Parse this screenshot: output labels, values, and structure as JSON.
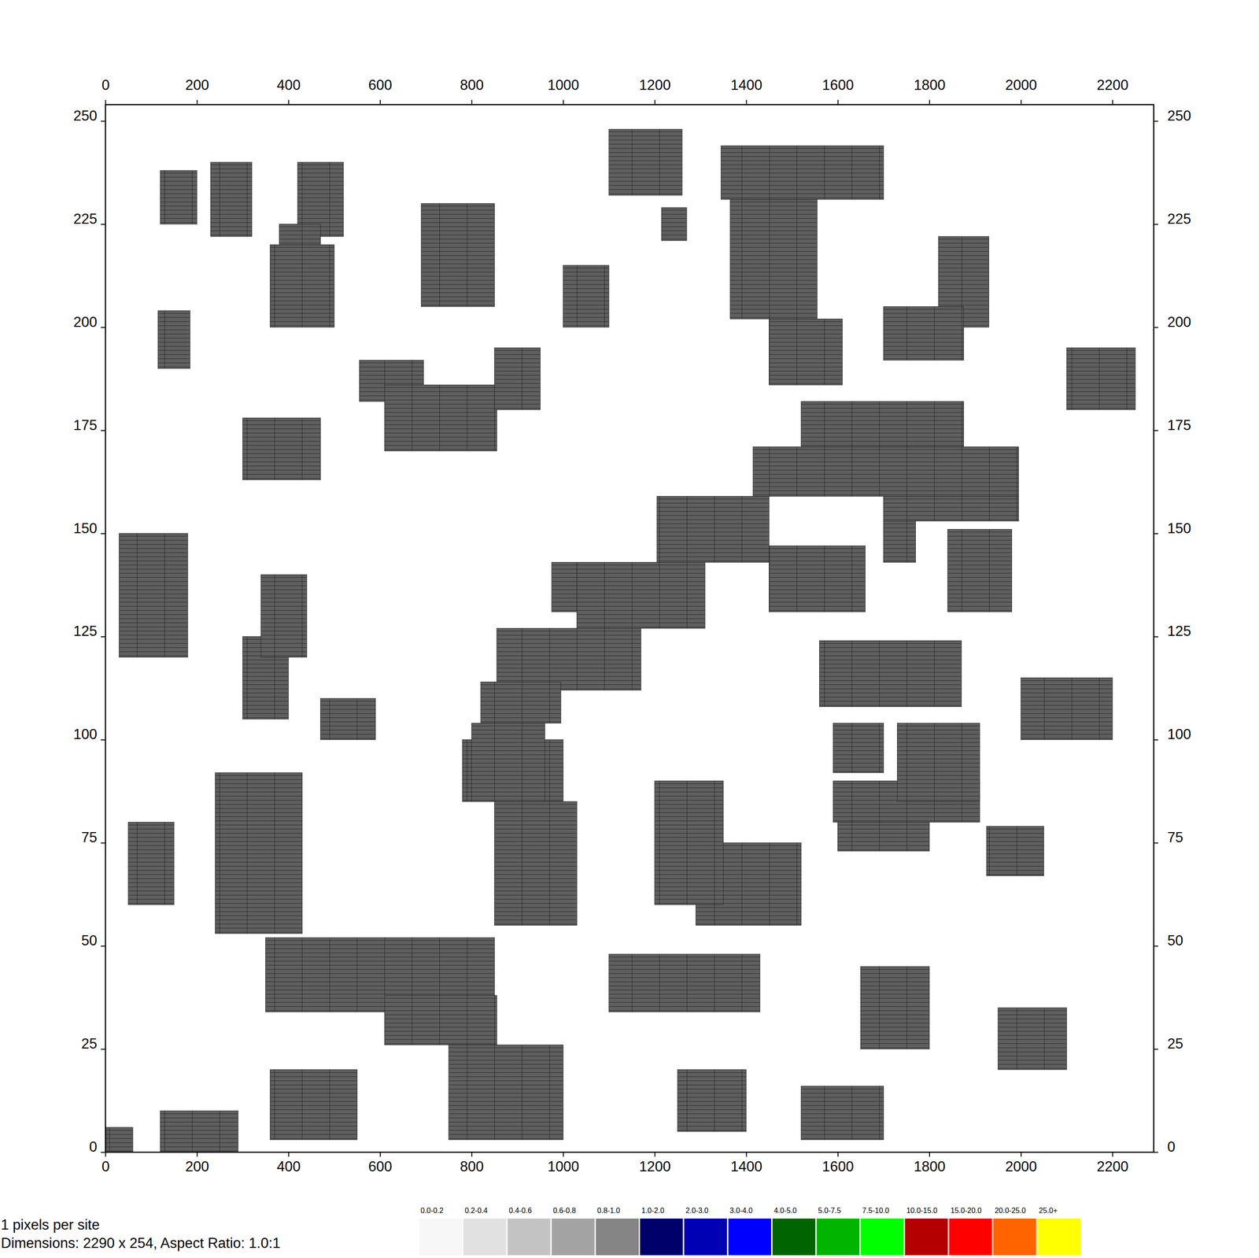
{
  "chart_data": {
    "type": "site_map",
    "xlim": [
      0,
      2290
    ],
    "ylim": [
      0,
      254
    ],
    "xticks": [
      0,
      200,
      400,
      600,
      800,
      1000,
      1200,
      1400,
      1600,
      1800,
      2000,
      2200
    ],
    "yticks": [
      0,
      25,
      50,
      75,
      100,
      125,
      150,
      175,
      200,
      225,
      250
    ],
    "color": "#5f5f5f",
    "regions": [
      {
        "x": [
          120,
          200
        ],
        "y": [
          225,
          238
        ]
      },
      {
        "x": [
          230,
          320
        ],
        "y": [
          222,
          240
        ]
      },
      {
        "x": [
          420,
          520
        ],
        "y": [
          222,
          240
        ]
      },
      {
        "x": [
          380,
          470
        ],
        "y": [
          205,
          225
        ]
      },
      {
        "x": [
          360,
          500
        ],
        "y": [
          200,
          220
        ]
      },
      {
        "x": [
          690,
          850
        ],
        "y": [
          205,
          230
        ]
      },
      {
        "x": [
          1100,
          1260
        ],
        "y": [
          232,
          248
        ]
      },
      {
        "x": [
          1215,
          1270
        ],
        "y": [
          221,
          229
        ]
      },
      {
        "x": [
          300,
          470
        ],
        "y": [
          163,
          178
        ]
      },
      {
        "x": [
          555,
          695
        ],
        "y": [
          182,
          192
        ]
      },
      {
        "x": [
          610,
          855
        ],
        "y": [
          170,
          186
        ]
      },
      {
        "x": [
          115,
          185
        ],
        "y": [
          190,
          204
        ]
      },
      {
        "x": [
          30,
          180
        ],
        "y": [
          120,
          150
        ]
      },
      {
        "x": [
          300,
          400
        ],
        "y": [
          105,
          125
        ]
      },
      {
        "x": [
          340,
          440
        ],
        "y": [
          120,
          140
        ]
      },
      {
        "x": [
          470,
          590
        ],
        "y": [
          100,
          110
        ]
      },
      {
        "x": [
          240,
          430
        ],
        "y": [
          53,
          92
        ]
      },
      {
        "x": [
          780,
          1000
        ],
        "y": [
          85,
          100
        ]
      },
      {
        "x": [
          850,
          1030
        ],
        "y": [
          55,
          85
        ]
      },
      {
        "x": [
          350,
          850
        ],
        "y": [
          34,
          52
        ]
      },
      {
        "x": [
          610,
          855
        ],
        "y": [
          26,
          38
        ]
      },
      {
        "x": [
          750,
          1000
        ],
        "y": [
          3,
          26
        ]
      },
      {
        "x": [
          120,
          290
        ],
        "y": [
          0,
          10
        ]
      },
      {
        "x": [
          360,
          550
        ],
        "y": [
          3,
          20
        ]
      },
      {
        "x": [
          1100,
          1430
        ],
        "y": [
          34,
          48
        ]
      },
      {
        "x": [
          1290,
          1520
        ],
        "y": [
          55,
          75
        ]
      },
      {
        "x": [
          1590,
          1910
        ],
        "y": [
          80,
          90
        ]
      },
      {
        "x": [
          1600,
          1800
        ],
        "y": [
          73,
          80
        ]
      },
      {
        "x": [
          1925,
          2050
        ],
        "y": [
          67,
          79
        ]
      },
      {
        "x": [
          1560,
          1870
        ],
        "y": [
          108,
          124
        ]
      },
      {
        "x": [
          1590,
          1700
        ],
        "y": [
          92,
          104
        ]
      },
      {
        "x": [
          1730,
          1910
        ],
        "y": [
          85,
          104
        ]
      },
      {
        "x": [
          1840,
          1980
        ],
        "y": [
          131,
          151
        ]
      },
      {
        "x": [
          1450,
          1660
        ],
        "y": [
          131,
          147
        ]
      },
      {
        "x": [
          1700,
          1770
        ],
        "y": [
          143,
          155
        ]
      },
      {
        "x": [
          1820,
          1930
        ],
        "y": [
          200,
          222
        ]
      },
      {
        "x": [
          1700,
          1875
        ],
        "y": [
          192,
          205
        ]
      },
      {
        "x": [
          1345,
          1700
        ],
        "y": [
          231,
          244
        ]
      },
      {
        "x": [
          1365,
          1555
        ],
        "y": [
          202,
          231
        ]
      },
      {
        "x": [
          1450,
          1610
        ],
        "y": [
          186,
          202
        ]
      },
      {
        "x": [
          1520,
          1875
        ],
        "y": [
          171,
          182
        ]
      },
      {
        "x": [
          1415,
          1995
        ],
        "y": [
          159,
          171
        ]
      },
      {
        "x": [
          1700,
          1995
        ],
        "y": [
          153,
          159
        ]
      },
      {
        "x": [
          1205,
          1450
        ],
        "y": [
          143,
          159
        ]
      },
      {
        "x": [
          1030,
          1310
        ],
        "y": [
          127,
          143
        ]
      },
      {
        "x": [
          855,
          1170
        ],
        "y": [
          112,
          127
        ]
      },
      {
        "x": [
          820,
          995
        ],
        "y": [
          104,
          114
        ]
      },
      {
        "x": [
          800,
          960
        ],
        "y": [
          85,
          104
        ]
      },
      {
        "x": [
          975,
          1030
        ],
        "y": [
          131,
          143
        ]
      },
      {
        "x": [
          1520,
          1700
        ],
        "y": [
          3,
          16
        ]
      },
      {
        "x": [
          1200,
          1350
        ],
        "y": [
          60,
          90
        ]
      },
      {
        "x": [
          1650,
          1800
        ],
        "y": [
          25,
          45
        ]
      },
      {
        "x": [
          1950,
          2100
        ],
        "y": [
          20,
          35
        ]
      },
      {
        "x": [
          2000,
          2200
        ],
        "y": [
          100,
          115
        ]
      },
      {
        "x": [
          2100,
          2250
        ],
        "y": [
          180,
          195
        ]
      },
      {
        "x": [
          0,
          60
        ],
        "y": [
          0,
          6
        ]
      },
      {
        "x": [
          1250,
          1400
        ],
        "y": [
          5,
          20
        ]
      },
      {
        "x": [
          1000,
          1100
        ],
        "y": [
          200,
          215
        ]
      },
      {
        "x": [
          850,
          950
        ],
        "y": [
          180,
          195
        ]
      },
      {
        "x": [
          50,
          150
        ],
        "y": [
          60,
          80
        ]
      }
    ],
    "colorbar": {
      "labels": [
        "0.0-0.2",
        "0.2-0.4",
        "0.4-0.6",
        "0.6-0.8",
        "0.8-1.0",
        "1.0-2.0",
        "2.0-3.0",
        "3.0-4.0",
        "4.0-5.0",
        "5.0-7.5",
        "7.5-10.0",
        "10.0-15.0",
        "15.0-20.0",
        "20.0-25.0",
        "25.0+"
      ],
      "colors": [
        "#f7f7f7",
        "#e1e1e1",
        "#c3c3c3",
        "#a3a3a3",
        "#858585",
        "#00006a",
        "#0000b4",
        "#0000ff",
        "#006400",
        "#00b400",
        "#00ff00",
        "#b40000",
        "#ff0000",
        "#ff6400",
        "#ffff00"
      ]
    },
    "annotations": [
      "1 pixels per site",
      "Dimensions: 2290 x 254, Aspect Ratio: 1.0:1"
    ]
  }
}
